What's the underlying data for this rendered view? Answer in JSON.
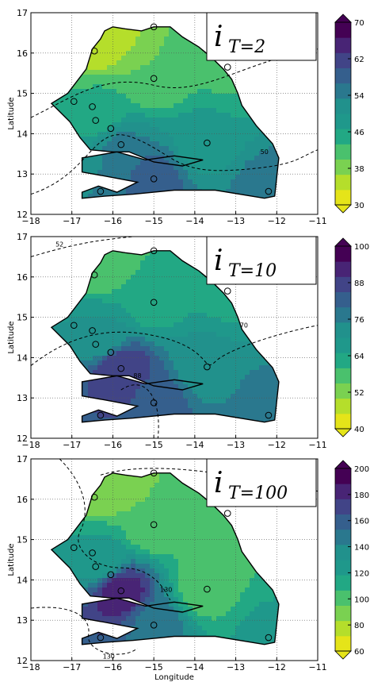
{
  "chart_data": [
    {
      "type": "contour-map",
      "title_main": "i",
      "title_sub": "T=2",
      "xlabel": "",
      "ylabel": "Latitude",
      "xlim": [
        -18,
        -11
      ],
      "ylim": [
        12,
        17
      ],
      "xticks": [
        "−18",
        "−17",
        "−16",
        "−15",
        "−14",
        "−13",
        "−12",
        "−11"
      ],
      "yticks": [
        "12",
        "13",
        "14",
        "15",
        "16",
        "17"
      ],
      "colorbar_ticks": [
        "30",
        "38",
        "46",
        "54",
        "62",
        "70"
      ],
      "colorbar_range": [
        30,
        70
      ],
      "grid": true,
      "contour_labels": [
        "50"
      ],
      "contour_fields": [
        {
          "lon": -16.3,
          "lat": 16.4,
          "value": 34
        },
        {
          "lon": -15.0,
          "lat": 15.4,
          "value": 40
        },
        {
          "lon": -13.2,
          "lat": 15.6,
          "value": 43
        },
        {
          "lon": -16.3,
          "lat": 14.5,
          "value": 44
        },
        {
          "lon": -15.8,
          "lat": 13.7,
          "value": 54
        },
        {
          "lon": -13.8,
          "lat": 13.8,
          "value": 48
        },
        {
          "lon": -15.0,
          "lat": 12.9,
          "value": 58
        },
        {
          "lon": -12.2,
          "lat": 12.6,
          "value": 55
        }
      ]
    },
    {
      "type": "contour-map",
      "title_main": "i",
      "title_sub": "T=10",
      "xlabel": "",
      "ylabel": "Latitude",
      "xlim": [
        -18,
        -11
      ],
      "ylim": [
        12,
        17
      ],
      "xticks": [
        "−18",
        "−17",
        "−16",
        "−15",
        "−14",
        "−13",
        "−12",
        "−11"
      ],
      "yticks": [
        "12",
        "13",
        "14",
        "15",
        "16",
        "17"
      ],
      "colorbar_ticks": [
        "40",
        "52",
        "64",
        "76",
        "88",
        "100"
      ],
      "colorbar_range": [
        40,
        100
      ],
      "grid": true,
      "contour_labels": [
        "52",
        "70",
        "88"
      ],
      "contour_fields": [
        {
          "lon": -16.3,
          "lat": 16.4,
          "value": 56
        },
        {
          "lon": -15.0,
          "lat": 15.4,
          "value": 62
        },
        {
          "lon": -13.2,
          "lat": 15.6,
          "value": 64
        },
        {
          "lon": -16.3,
          "lat": 14.5,
          "value": 70
        },
        {
          "lon": -15.8,
          "lat": 13.7,
          "value": 90
        },
        {
          "lon": -13.8,
          "lat": 13.8,
          "value": 72
        },
        {
          "lon": -15.0,
          "lat": 12.9,
          "value": 84
        },
        {
          "lon": -12.2,
          "lat": 12.6,
          "value": 78
        }
      ]
    },
    {
      "type": "contour-map",
      "title_main": "i",
      "title_sub": "T=100",
      "xlabel": "Longitude",
      "ylabel": "Latitude",
      "xlim": [
        -18,
        -11
      ],
      "ylim": [
        12,
        17
      ],
      "xticks": [
        "−18",
        "−17",
        "−16",
        "−15",
        "−14",
        "−13",
        "−12",
        "−11"
      ],
      "yticks": [
        "12",
        "13",
        "14",
        "15",
        "16",
        "17"
      ],
      "colorbar_ticks": [
        "60",
        "80",
        "100",
        "120",
        "140",
        "160",
        "180",
        "200"
      ],
      "colorbar_range": [
        60,
        200
      ],
      "grid": true,
      "contour_labels": [
        "130",
        "130"
      ],
      "contour_fields": [
        {
          "lon": -16.3,
          "lat": 16.4,
          "value": 85
        },
        {
          "lon": -15.0,
          "lat": 15.4,
          "value": 95
        },
        {
          "lon": -13.2,
          "lat": 15.6,
          "value": 98
        },
        {
          "lon": -16.3,
          "lat": 14.5,
          "value": 120
        },
        {
          "lon": -15.8,
          "lat": 13.7,
          "value": 185
        },
        {
          "lon": -13.8,
          "lat": 13.8,
          "value": 100
        },
        {
          "lon": -15.0,
          "lat": 12.9,
          "value": 150
        },
        {
          "lon": -12.2,
          "lat": 12.6,
          "value": 120
        }
      ]
    }
  ],
  "stations": [
    {
      "lon": -15.0,
      "lat": 16.65
    },
    {
      "lon": -16.45,
      "lat": 16.05
    },
    {
      "lon": -15.0,
      "lat": 15.37
    },
    {
      "lon": -13.2,
      "lat": 15.65
    },
    {
      "lon": -16.95,
      "lat": 14.8
    },
    {
      "lon": -16.5,
      "lat": 14.67
    },
    {
      "lon": -16.42,
      "lat": 14.33
    },
    {
      "lon": -16.05,
      "lat": 14.13
    },
    {
      "lon": -15.8,
      "lat": 13.73
    },
    {
      "lon": -13.7,
      "lat": 13.77
    },
    {
      "lon": -16.3,
      "lat": 12.57
    },
    {
      "lon": -15.0,
      "lat": 12.88
    },
    {
      "lon": -12.2,
      "lat": 12.57
    }
  ],
  "colors": {
    "palette": [
      "#e5e419",
      "#b5de2b",
      "#7ad151",
      "#4ac16d",
      "#22a884",
      "#1f988b",
      "#21918c",
      "#2a788e",
      "#355f8d",
      "#414487",
      "#482475",
      "#440154"
    ]
  }
}
